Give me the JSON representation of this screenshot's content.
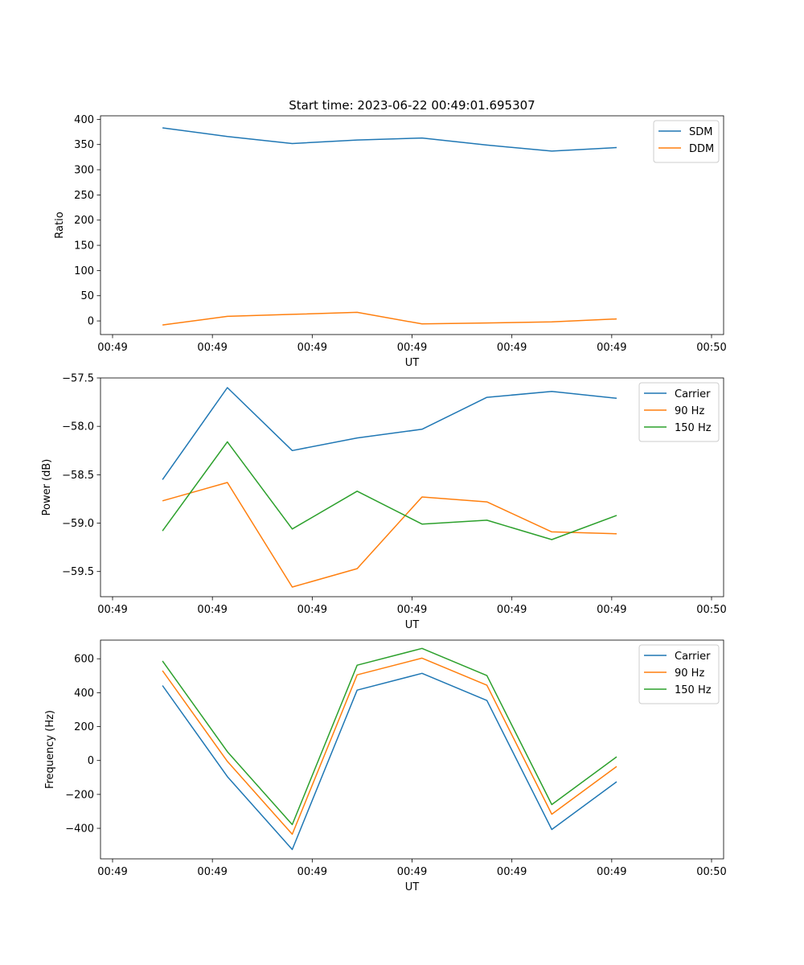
{
  "title": "Start time: 2023-06-22 00:49:01.695307",
  "colors": {
    "blue": "#1f77b4",
    "orange": "#ff7f0e",
    "green": "#2ca02c"
  },
  "chart_data": [
    {
      "type": "line",
      "ylabel": "Ratio",
      "xlabel": "UT",
      "xlim": [
        0,
        6
      ],
      "ylim": [
        -27,
        407
      ],
      "xticks": [
        0,
        1,
        2,
        3,
        4,
        5,
        6
      ],
      "xtick_labels": [
        "00:49",
        "00:49",
        "00:49",
        "00:49",
        "00:49",
        "00:49",
        "00:50"
      ],
      "yticks": [
        0,
        50,
        100,
        150,
        200,
        250,
        300,
        350,
        400
      ],
      "ytick_labels": [
        "0",
        "50",
        "100",
        "150",
        "200",
        "250",
        "300",
        "350",
        "400"
      ],
      "legend": "top-right",
      "x": [
        0.5,
        1.15,
        1.8,
        2.45,
        3.1,
        3.75,
        4.4,
        5.05
      ],
      "series": [
        {
          "name": "SDM",
          "color": "#1f77b4",
          "values": [
            383,
            366,
            352,
            359,
            363,
            349,
            337,
            344
          ]
        },
        {
          "name": "DDM",
          "color": "#ff7f0e",
          "values": [
            -8,
            9,
            13,
            17,
            -6,
            -4,
            -2,
            4
          ]
        }
      ]
    },
    {
      "type": "line",
      "ylabel": "Power (dB)",
      "xlabel": "UT",
      "xlim": [
        0,
        6
      ],
      "ylim": [
        -59.76,
        -57.5
      ],
      "xticks": [
        0,
        1,
        2,
        3,
        4,
        5,
        6
      ],
      "xtick_labels": [
        "00:49",
        "00:49",
        "00:49",
        "00:49",
        "00:49",
        "00:49",
        "00:50"
      ],
      "yticks": [
        -59.5,
        -59.0,
        -58.5,
        -58.0,
        -57.5
      ],
      "ytick_labels": [
        "−59.5",
        "−59.0",
        "−58.5",
        "−58.0",
        "−57.5"
      ],
      "legend": "top-right",
      "x": [
        0.5,
        1.15,
        1.8,
        2.45,
        3.1,
        3.75,
        4.4,
        5.05
      ],
      "series": [
        {
          "name": "Carrier",
          "color": "#1f77b4",
          "values": [
            -58.55,
            -57.6,
            -58.25,
            -58.12,
            -58.03,
            -57.7,
            -57.64,
            -57.71
          ]
        },
        {
          "name": "90 Hz",
          "color": "#ff7f0e",
          "values": [
            -58.77,
            -58.58,
            -59.66,
            -59.47,
            -58.73,
            -58.78,
            -59.09,
            -59.11
          ]
        },
        {
          "name": "150 Hz",
          "color": "#2ca02c",
          "values": [
            -59.08,
            -58.16,
            -59.06,
            -58.67,
            -59.01,
            -58.97,
            -59.17,
            -58.92
          ]
        }
      ]
    },
    {
      "type": "line",
      "ylabel": "Frequency (Hz)",
      "xlabel": "UT",
      "xlim": [
        0,
        6
      ],
      "ylim": [
        -580,
        710
      ],
      "xticks": [
        0,
        1,
        2,
        3,
        4,
        5,
        6
      ],
      "xtick_labels": [
        "00:49",
        "00:49",
        "00:49",
        "00:49",
        "00:49",
        "00:49",
        "00:50"
      ],
      "yticks": [
        -400,
        -200,
        0,
        200,
        400,
        600
      ],
      "ytick_labels": [
        "−400",
        "−200",
        "0",
        "200",
        "400",
        "600"
      ],
      "legend": "top-right",
      "x": [
        0.5,
        1.15,
        1.8,
        2.45,
        3.1,
        3.75,
        4.4,
        5.05
      ],
      "series": [
        {
          "name": "Carrier",
          "color": "#1f77b4",
          "values": [
            442,
            -95,
            -525,
            415,
            514,
            354,
            -407,
            -125
          ]
        },
        {
          "name": "90 Hz",
          "color": "#ff7f0e",
          "values": [
            530,
            -5,
            -435,
            505,
            604,
            444,
            -317,
            -35
          ]
        },
        {
          "name": "150 Hz",
          "color": "#2ca02c",
          "values": [
            587,
            52,
            -378,
            562,
            661,
            501,
            -260,
            22
          ]
        }
      ]
    }
  ]
}
